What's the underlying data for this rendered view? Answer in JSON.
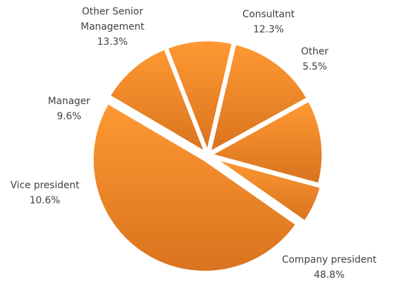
{
  "chart_data": {
    "type": "pie",
    "title": "",
    "slices": [
      {
        "label": "Company president",
        "value": 48.8,
        "display": "48.8%"
      },
      {
        "label": "Vice president",
        "value": 10.6,
        "display": "10.6%"
      },
      {
        "label": "Manager",
        "value": 9.6,
        "display": "9.6%"
      },
      {
        "label": "Other Senior Management",
        "label_lines": [
          "Other Senior",
          "Management"
        ],
        "value": 13.3,
        "display": "13.3%"
      },
      {
        "label": "Consultant",
        "value": 12.3,
        "display": "12.3%"
      },
      {
        "label": "Other",
        "value": 5.5,
        "display": "5.5%"
      }
    ],
    "colors": {
      "top": "#FF9933",
      "bottom": "#D9731E",
      "separator": "#FFFFFF"
    }
  }
}
